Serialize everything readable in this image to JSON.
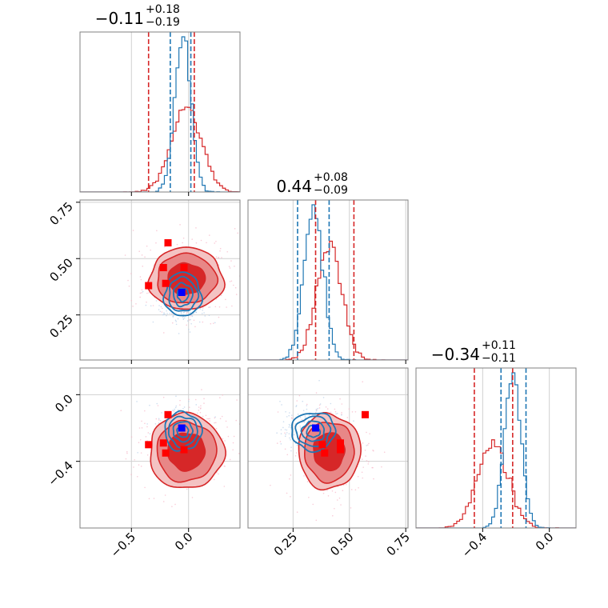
{
  "colors": {
    "red": "#d62728",
    "blue": "#1f77b4",
    "red_fill_outer": "#f4c3c3",
    "red_fill_mid": "#e88787",
    "red_fill_inner": "#d62728",
    "marker_red": "#ff0000",
    "marker_blue": "#0000ff",
    "grid": "#d0d0d0",
    "axes": "#808080"
  },
  "chart_data": {
    "type": "corner",
    "parameters": [
      "p0",
      "p1",
      "p2"
    ],
    "ranges": {
      "p0": [
        -0.95,
        0.45
      ],
      "p1": [
        0.05,
        0.76
      ],
      "p2": [
        -0.8,
        0.16
      ]
    },
    "ticks": {
      "p0": {
        "values": [
          -0.5,
          0.0
        ],
        "labels": [
          "−0.5",
          "0.0"
        ]
      },
      "p1": {
        "values": [
          0.25,
          0.5,
          0.75
        ],
        "labels": [
          "0.25",
          "0.50",
          "0.75"
        ]
      },
      "p2": {
        "values": [
          -0.4,
          0.0
        ],
        "labels": [
          "−0.4",
          "0.0"
        ]
      }
    },
    "titles": [
      {
        "param": "p0",
        "value": "−0.11",
        "plus": "+0.18",
        "minus": "−0.19"
      },
      {
        "param": "p1",
        "value": "0.44",
        "plus": "+0.08",
        "minus": "−0.09"
      },
      {
        "param": "p2",
        "value": "−0.34",
        "plus": "+0.11",
        "minus": "−0.11"
      }
    ],
    "series": [
      {
        "color_key": "red",
        "mean": [
          -0.02,
          0.41,
          -0.34
        ],
        "std": [
          0.13,
          0.055,
          0.09
        ],
        "quantile_lines": [
          [
            -0.35,
            0.05
          ],
          [
            0.35,
            0.52
          ],
          [
            -0.45,
            -0.22
          ]
        ]
      },
      {
        "color_key": "blue",
        "mean": [
          -0.05,
          0.34,
          -0.22
        ],
        "std": [
          0.07,
          0.042,
          0.05
        ],
        "quantile_lines": [
          [
            -0.16,
            0.02
          ],
          [
            0.27,
            0.41
          ],
          [
            -0.29,
            -0.14
          ]
        ]
      }
    ],
    "markers": {
      "red": [
        [
          -0.18,
          0.57,
          -0.12
        ],
        [
          -0.22,
          0.46,
          -0.29
        ],
        [
          -0.2,
          0.39,
          -0.35
        ],
        [
          -0.04,
          0.46,
          -0.33
        ],
        [
          -0.35,
          0.38,
          -0.3
        ]
      ],
      "blue": [
        [
          -0.06,
          0.35,
          -0.2
        ]
      ]
    },
    "grid": true
  }
}
